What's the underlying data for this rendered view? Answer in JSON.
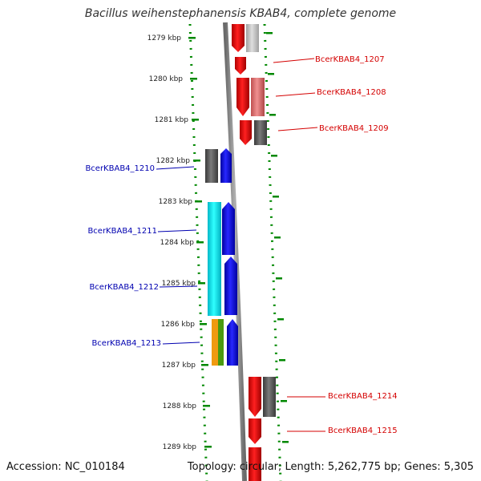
{
  "title": "Bacillus weihenstephanensis KBAB4, complete genome",
  "footer": {
    "accession": "Accession: NC_010184",
    "summary": "Topology: circular; Length: 5,262,775 bp; Genes: 5,305"
  },
  "colors": {
    "forward_label": "#d40000",
    "reverse_label": "#0000b0",
    "backbone": "#8c8c8c",
    "ruler": "#008800"
  },
  "ticks": [
    "1279 kbp",
    "1280 kbp",
    "1281 kbp",
    "1282 kbp",
    "1283 kbp",
    "1284 kbp",
    "1285 kbp",
    "1286 kbp",
    "1287 kbp",
    "1288 kbp",
    "1289 kbp"
  ],
  "genes": [
    {
      "label": "BcerKBAB4_1207",
      "strand": "forward"
    },
    {
      "label": "BcerKBAB4_1208",
      "strand": "forward"
    },
    {
      "label": "BcerKBAB4_1209",
      "strand": "forward"
    },
    {
      "label": "BcerKBAB4_1210",
      "strand": "reverse"
    },
    {
      "label": "BcerKBAB4_1211",
      "strand": "reverse"
    },
    {
      "label": "BcerKBAB4_1212",
      "strand": "reverse"
    },
    {
      "label": "BcerKBAB4_1213",
      "strand": "reverse"
    },
    {
      "label": "BcerKBAB4_1214",
      "strand": "forward"
    },
    {
      "label": "BcerKBAB4_1215",
      "strand": "forward"
    }
  ]
}
